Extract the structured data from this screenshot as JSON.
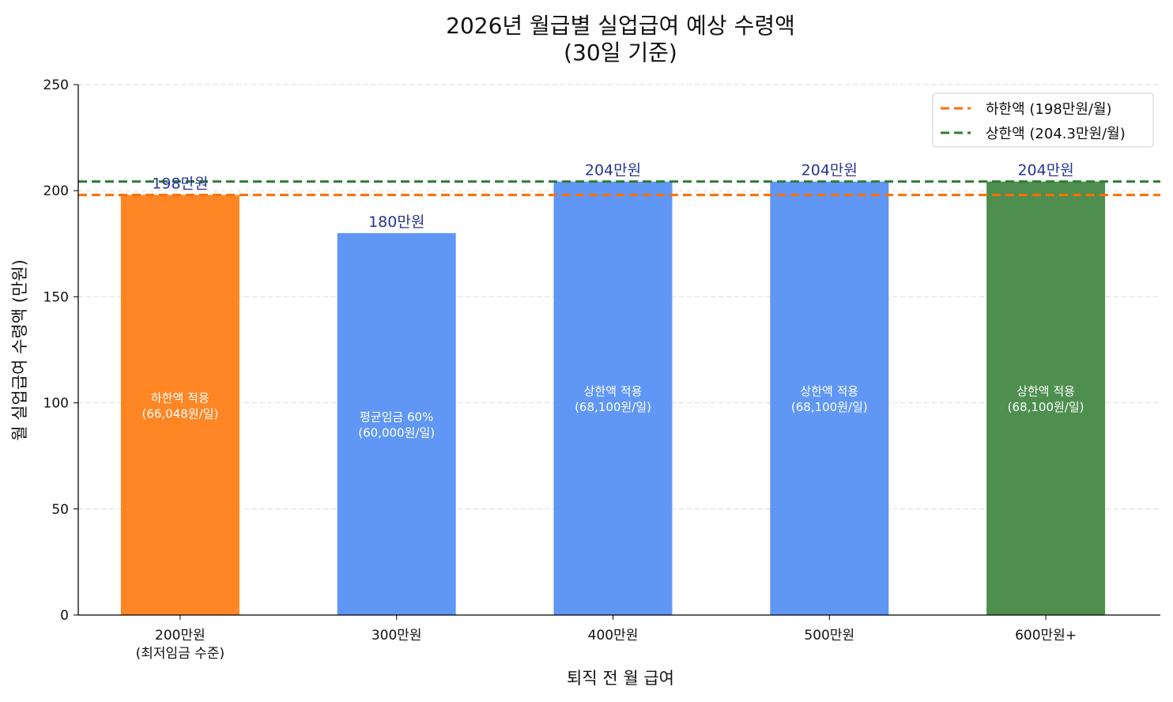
{
  "chart_data": {
    "type": "bar",
    "title": "2026년 월급별 실업급여 예상 수령액",
    "subtitle": "(30일 기준)",
    "xlabel": "퇴직 전 월 급여",
    "ylabel": "월 실업급여 수령액 (만원)",
    "ylim": [
      0,
      250
    ],
    "yticks": [
      0,
      50,
      100,
      150,
      200,
      250
    ],
    "grid": "horizontal dashed",
    "legend_position": "top-right",
    "categories": [
      "200만원\n(최저임금 수준)",
      "300만원",
      "400만원",
      "500만원",
      "600만원+"
    ],
    "values": [
      198,
      180,
      204.3,
      204.3,
      204.3
    ],
    "bar_colors": [
      "#FF8624",
      "#6097F5",
      "#6097F5",
      "#6097F5",
      "#4E8F4F"
    ],
    "data_labels": [
      "198만원",
      "180만원",
      "204만원",
      "204만원",
      "204만원"
    ],
    "inner_labels": [
      [
        "하한액 적용",
        "(66,048원/일)"
      ],
      [
        "평균임금 60%",
        "(60,000원/일)"
      ],
      [
        "상한액 적용",
        "(68,100원/일)"
      ],
      [
        "상한액 적용",
        "(68,100원/일)"
      ],
      [
        "상한액 적용",
        "(68,100원/일)"
      ]
    ],
    "reference_lines": [
      {
        "name": "하한액 (198만원/월)",
        "value": 198,
        "color": "#FF6F00",
        "style": "dashed"
      },
      {
        "name": "상한액 (204.3만원/월)",
        "value": 204.3,
        "color": "#2E7D32",
        "style": "dashed"
      }
    ],
    "label_color": "#283593"
  }
}
